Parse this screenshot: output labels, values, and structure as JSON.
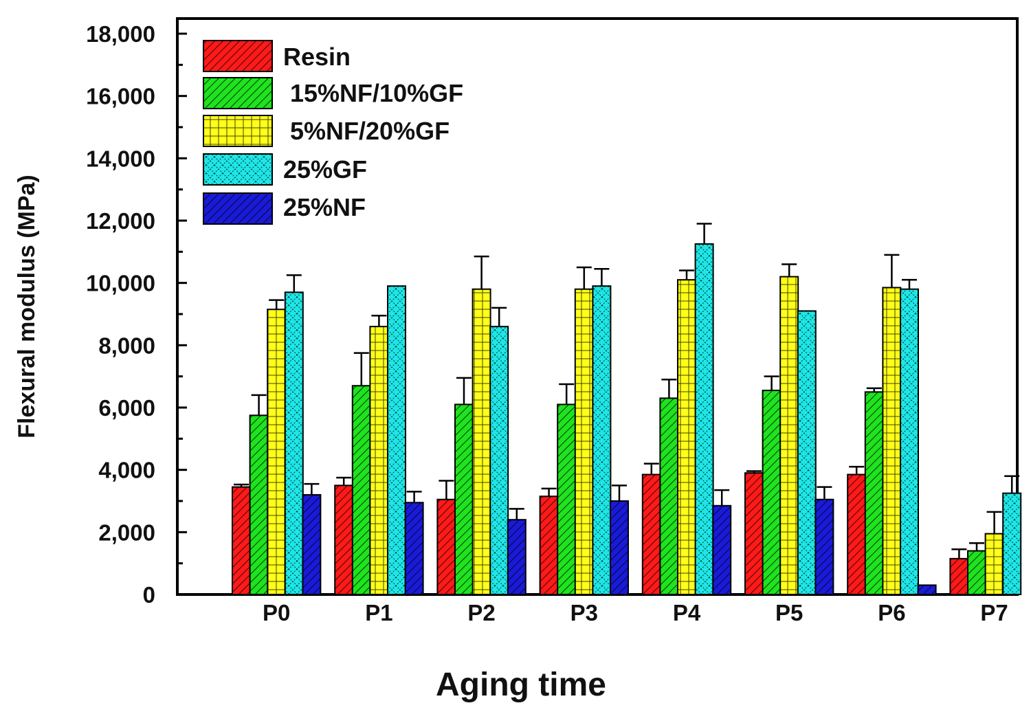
{
  "chart_data": {
    "type": "bar",
    "title": "",
    "xlabel": "Aging time",
    "ylabel": "Flexural modulus (MPa)",
    "ylim": [
      0,
      18000
    ],
    "yticks": [
      0,
      2000,
      4000,
      6000,
      8000,
      10000,
      12000,
      14000,
      16000,
      18000
    ],
    "ytick_labels": [
      "0",
      "2,000",
      "4,000",
      "6,000",
      "8,000",
      "10,000",
      "12,000",
      "14,000",
      "16,000",
      "18,000"
    ],
    "categories": [
      "P0",
      "P1",
      "P2",
      "P3",
      "P4",
      "P5",
      "P6",
      "P7"
    ],
    "legend_position": "top-left",
    "series": [
      {
        "name": "Resin",
        "legend_label": "Resin",
        "color": "#ff1a1a",
        "pattern": "diagonal",
        "values": [
          3450,
          3500,
          3050,
          3150,
          3850,
          3900,
          3850,
          1150
        ],
        "errors": [
          80,
          250,
          600,
          250,
          350,
          60,
          250,
          300
        ]
      },
      {
        "name": "15%NF/10%GF",
        "legend_label": " 15%NF/10%GF",
        "color": "#1ee31e",
        "pattern": "diagonal",
        "values": [
          5750,
          6700,
          6100,
          6100,
          6300,
          6550,
          6500,
          1400
        ],
        "errors": [
          650,
          1050,
          850,
          650,
          600,
          450,
          120,
          250
        ]
      },
      {
        "name": "5%NF/20%GF",
        "legend_label": " 5%NF/20%GF",
        "color": "#ffff1a",
        "pattern": "grid",
        "values": [
          9150,
          8600,
          9800,
          9800,
          10100,
          10200,
          9850,
          1950
        ],
        "errors": [
          300,
          350,
          1050,
          700,
          300,
          400,
          1050,
          700
        ]
      },
      {
        "name": "25%GF",
        "legend_label": "25%GF",
        "color": "#1ee6e6",
        "pattern": "crosshatch",
        "values": [
          9700,
          9900,
          8600,
          9900,
          11250,
          9100,
          9800,
          3250
        ],
        "errors": [
          550,
          0,
          600,
          550,
          650,
          0,
          300,
          550
        ]
      },
      {
        "name": "25%NF",
        "legend_label": "25%NF",
        "color": "#1a1ad9",
        "pattern": "diagonal",
        "values": [
          3200,
          2950,
          2400,
          3000,
          2850,
          3050,
          300,
          null
        ],
        "errors": [
          350,
          350,
          350,
          500,
          500,
          400,
          0,
          0
        ]
      }
    ]
  }
}
